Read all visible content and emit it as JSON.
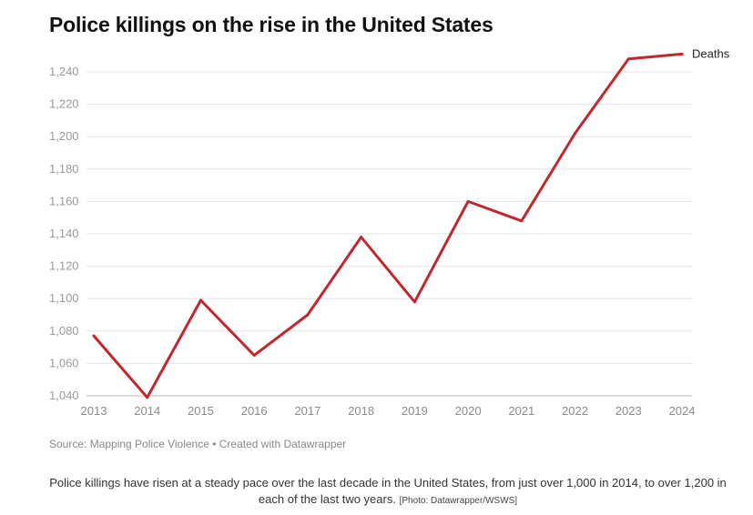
{
  "chart_data": {
    "type": "line",
    "title": "Police killings on the rise in the United States",
    "xlabel": "",
    "ylabel": "",
    "categories": [
      "2013",
      "2014",
      "2015",
      "2016",
      "2017",
      "2018",
      "2019",
      "2020",
      "2021",
      "2022",
      "2023",
      "2024"
    ],
    "series": [
      {
        "name": "Deaths",
        "color": "#c0282d",
        "values": [
          1077,
          1039,
          1099,
          1065,
          1090,
          1138,
          1098,
          1160,
          1148,
          1202,
          1248,
          1251
        ]
      }
    ],
    "ylim": [
      1040,
      1240
    ],
    "yticks": [
      1040,
      1060,
      1080,
      1100,
      1120,
      1140,
      1160,
      1180,
      1200,
      1220,
      1240
    ],
    "ytick_labels": [
      "1,040",
      "1,060",
      "1,080",
      "1,100",
      "1,120",
      "1,140",
      "1,160",
      "1,180",
      "1,200",
      "1,220",
      "1,240"
    ],
    "grid": true,
    "legend": "line-end label"
  },
  "source": "Source: Mapping Police Violence • Created with Datawrapper",
  "caption": {
    "text": "Police killings have risen at a steady pace over the last decade in the United States, from just over 1,000 in 2014, to over 1,200 in each of the last two years.",
    "credit": "[Photo: Datawrapper/WSWS]"
  }
}
